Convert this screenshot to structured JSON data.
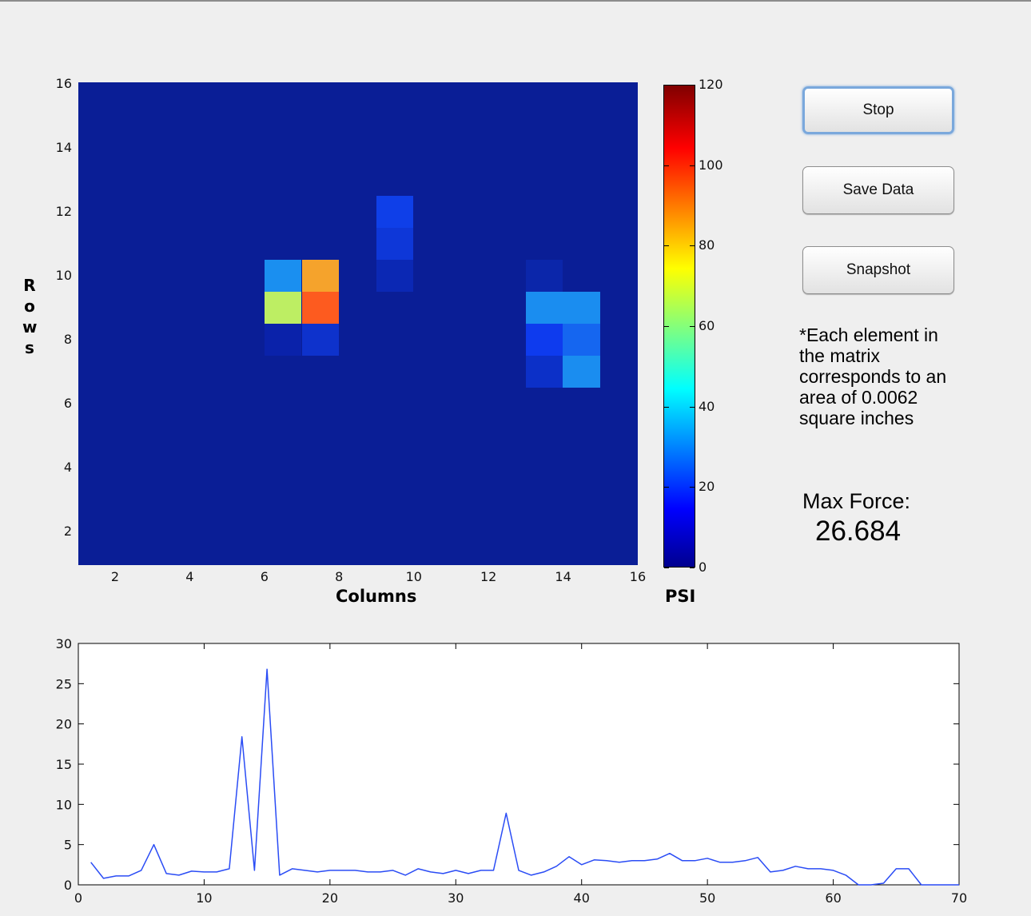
{
  "heatmap": {
    "title": "",
    "xlabel": "Columns",
    "ylabel": [
      "R",
      "o",
      "w",
      "s"
    ],
    "colorbar_label": "PSI",
    "x_ticks": [
      "2",
      "4",
      "6",
      "8",
      "10",
      "12",
      "14",
      "16"
    ],
    "y_ticks": [
      "2",
      "4",
      "6",
      "8",
      "10",
      "12",
      "14",
      "16"
    ],
    "colorbar_ticks": [
      "0",
      "20",
      "40",
      "60",
      "80",
      "100",
      "120"
    ],
    "background_color": "#0a1e96",
    "cells": [
      {
        "col": 6,
        "row": 10,
        "color": "#1a8ff0"
      },
      {
        "col": 7,
        "row": 10,
        "color": "#f5a32c"
      },
      {
        "col": 6,
        "row": 9,
        "color": "#bdee63"
      },
      {
        "col": 7,
        "row": 9,
        "color": "#fd5b1f"
      },
      {
        "col": 6,
        "row": 8,
        "color": "#0a22aa"
      },
      {
        "col": 7,
        "row": 8,
        "color": "#0e32cc"
      },
      {
        "col": 9,
        "row": 12,
        "color": "#0f3fe8"
      },
      {
        "col": 9,
        "row": 11,
        "color": "#0e37d8"
      },
      {
        "col": 9,
        "row": 10,
        "color": "#0b28b4"
      },
      {
        "col": 13,
        "row": 10,
        "color": "#0b26aa"
      },
      {
        "col": 13,
        "row": 9,
        "color": "#1a8df0"
      },
      {
        "col": 14,
        "row": 9,
        "color": "#1a8df0"
      },
      {
        "col": 13,
        "row": 8,
        "color": "#0e3bee"
      },
      {
        "col": 14,
        "row": 8,
        "color": "#1566f0"
      },
      {
        "col": 13,
        "row": 7,
        "color": "#0c30c8"
      },
      {
        "col": 14,
        "row": 7,
        "color": "#1a8df0"
      }
    ]
  },
  "controls": {
    "stop_label": "Stop",
    "save_label": "Save Data",
    "snapshot_label": "Snapshot",
    "note_lines": [
      "*Each element in",
      "the matrix",
      "corresponds to an",
      "area of 0.0062",
      "square inches"
    ],
    "max_force_label": "Max Force:",
    "max_force_value": "26.684"
  },
  "chart_data": {
    "type": "line",
    "title": "",
    "xlabel": "",
    "ylabel": "",
    "xlim": [
      0,
      70
    ],
    "ylim": [
      0,
      30
    ],
    "x_ticks": [
      "0",
      "10",
      "20",
      "30",
      "40",
      "50",
      "60",
      "70"
    ],
    "y_ticks": [
      "0",
      "5",
      "10",
      "15",
      "20",
      "25",
      "30"
    ],
    "grid": false,
    "line_color": "#2a4cf5",
    "series": [
      {
        "x": [
          1,
          2,
          3,
          4,
          5,
          6,
          7,
          8,
          9,
          10,
          11,
          12,
          13,
          14,
          15,
          16,
          17,
          18,
          19,
          20,
          21,
          22,
          23,
          24,
          25,
          26,
          27,
          28,
          29,
          30,
          31,
          32,
          33,
          34,
          35,
          36,
          37,
          38,
          39,
          40,
          41,
          42,
          43,
          44,
          45,
          46,
          47,
          48,
          49,
          50,
          51,
          52,
          53,
          54,
          55,
          56,
          57,
          58,
          59,
          60,
          61,
          62,
          63,
          64,
          65,
          66,
          67,
          68,
          69,
          70
        ],
        "values": [
          2.8,
          0.8,
          1.1,
          1.1,
          1.8,
          5.0,
          1.4,
          1.2,
          1.7,
          1.6,
          1.6,
          2.0,
          18.4,
          1.8,
          26.8,
          1.2,
          2.0,
          1.8,
          1.6,
          1.8,
          1.8,
          1.8,
          1.6,
          1.6,
          1.8,
          1.2,
          2.0,
          1.6,
          1.4,
          1.8,
          1.4,
          1.8,
          1.8,
          8.9,
          1.8,
          1.2,
          1.6,
          2.3,
          3.5,
          2.5,
          3.1,
          3.0,
          2.8,
          3.0,
          3.0,
          3.2,
          3.9,
          3.0,
          3.0,
          3.3,
          2.8,
          2.8,
          3.0,
          3.4,
          1.6,
          1.8,
          2.3,
          2.0,
          2.0,
          1.8,
          1.2,
          0,
          0,
          0.2,
          2.0,
          2.0,
          0,
          0,
          0,
          0
        ]
      }
    ]
  }
}
